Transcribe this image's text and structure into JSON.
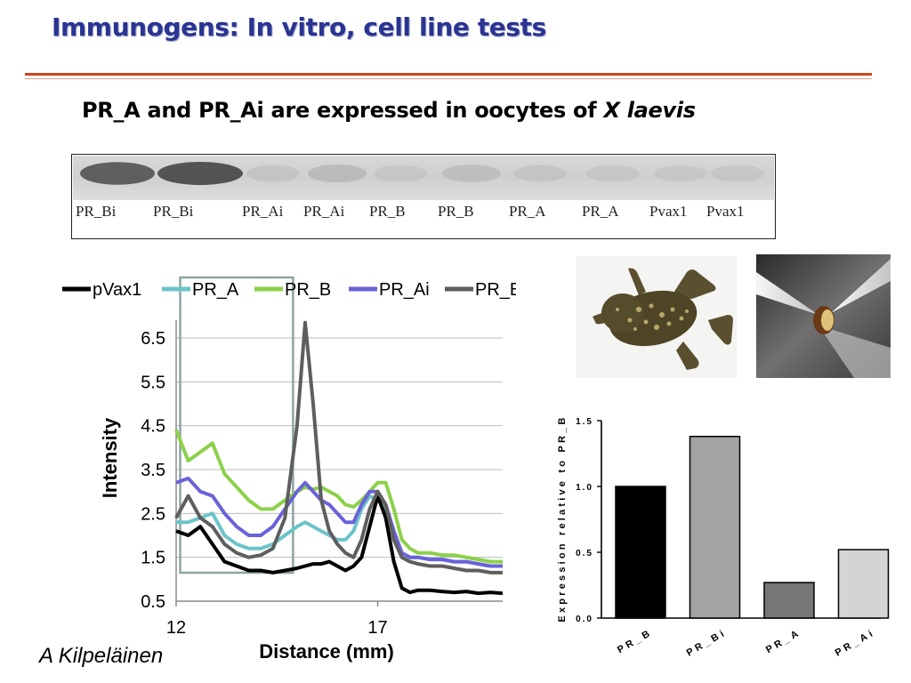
{
  "slide": {
    "title": "Immunogens: In vitro, cell line tests",
    "subtitle_main": "PR_A and PR_Ai are expressed in oocytes of ",
    "subtitle_italic": "X laevis",
    "author": "A Kilpeläinen"
  },
  "gel": {
    "lanes": [
      "PR_Bi",
      "PR_Bi",
      "PR_Ai",
      "PR_Ai",
      "PR_B",
      "PR_B",
      "PR_A",
      "PR_A",
      "Pvax1",
      "Pvax1"
    ],
    "band_intensity": [
      0.75,
      0.8,
      0.12,
      0.22,
      0.1,
      0.18,
      0.12,
      0.1,
      0.08,
      0.1
    ]
  },
  "photos": {
    "frog_icon": "frog-photo",
    "oocyte_icon": "oocyte-photo"
  },
  "colors": {
    "title": "#2a3491",
    "rule": "#c9471d",
    "pVax1": "#000000",
    "PR_A": "#6cc4c9",
    "PR_B": "#8cd14a",
    "PR_Ai": "#6a62d8",
    "PR_Bi": "#5e5e5e"
  },
  "chart_data": [
    {
      "type": "line",
      "title": "",
      "xlabel": "Distance (mm)",
      "ylabel": "Intensity",
      "xlim": [
        12,
        20.1
      ],
      "ylim": [
        0.5,
        6.5
      ],
      "xticks": [
        "12",
        "17"
      ],
      "yticks": [
        "0.5",
        "1.5",
        "2.5",
        "3.5",
        "4.5",
        "5.5",
        "6.5"
      ],
      "grid": true,
      "legend_position": "top",
      "highlight_region": [
        12.1,
        14.9
      ],
      "x": [
        12.0,
        12.3,
        12.6,
        12.9,
        13.2,
        13.5,
        13.8,
        14.1,
        14.4,
        14.7,
        15.0,
        15.2,
        15.4,
        15.6,
        15.8,
        16.0,
        16.2,
        16.4,
        16.6,
        16.8,
        17.0,
        17.2,
        17.4,
        17.6,
        17.8,
        18.0,
        18.3,
        18.6,
        18.9,
        19.2,
        19.5,
        19.8,
        20.1
      ],
      "series": [
        {
          "name": "pVax1",
          "values": [
            2.1,
            2.0,
            2.2,
            1.8,
            1.4,
            1.3,
            1.2,
            1.2,
            1.15,
            1.2,
            1.25,
            1.3,
            1.35,
            1.35,
            1.4,
            1.3,
            1.2,
            1.3,
            1.5,
            2.2,
            2.9,
            2.4,
            1.4,
            0.8,
            0.7,
            0.75,
            0.75,
            0.72,
            0.7,
            0.72,
            0.68,
            0.7,
            0.68
          ]
        },
        {
          "name": "PR_A",
          "values": [
            2.3,
            2.3,
            2.4,
            2.5,
            2.0,
            1.8,
            1.7,
            1.7,
            1.8,
            2.0,
            2.2,
            2.3,
            2.2,
            2.1,
            2.0,
            1.9,
            1.9,
            2.1,
            2.6,
            2.9,
            2.8,
            2.6,
            2.0,
            1.6,
            1.5,
            1.5,
            1.45,
            1.45,
            1.4,
            1.4,
            1.35,
            1.3,
            1.3
          ]
        },
        {
          "name": "PR_B",
          "values": [
            4.4,
            3.7,
            3.9,
            4.1,
            3.4,
            3.1,
            2.8,
            2.6,
            2.6,
            2.8,
            3.0,
            3.1,
            3.05,
            3.1,
            3.0,
            2.9,
            2.7,
            2.65,
            2.8,
            3.0,
            3.2,
            3.2,
            2.6,
            1.9,
            1.7,
            1.6,
            1.6,
            1.55,
            1.55,
            1.5,
            1.45,
            1.4,
            1.4
          ]
        },
        {
          "name": "PR_Ai",
          "values": [
            3.2,
            3.3,
            3.0,
            2.9,
            2.5,
            2.2,
            2.0,
            2.0,
            2.2,
            2.6,
            3.0,
            3.2,
            3.0,
            2.8,
            2.7,
            2.5,
            2.3,
            2.3,
            2.7,
            3.0,
            3.0,
            2.7,
            2.1,
            1.6,
            1.5,
            1.5,
            1.45,
            1.45,
            1.4,
            1.4,
            1.35,
            1.3,
            1.3
          ]
        },
        {
          "name": "PR_Bi",
          "values": [
            2.4,
            2.9,
            2.4,
            2.2,
            1.8,
            1.6,
            1.5,
            1.55,
            1.7,
            2.4,
            4.5,
            6.85,
            5.0,
            2.8,
            2.1,
            1.8,
            1.6,
            1.5,
            1.9,
            2.6,
            3.0,
            2.7,
            1.9,
            1.5,
            1.4,
            1.35,
            1.3,
            1.3,
            1.25,
            1.2,
            1.2,
            1.15,
            1.15
          ]
        }
      ]
    },
    {
      "type": "bar",
      "title": "",
      "xlabel": "",
      "ylabel": "Expression relative to PR_B",
      "ylim": [
        0,
        1.5
      ],
      "yticks": [
        "0.0",
        "0.5",
        "1.0",
        "1.5"
      ],
      "categories": [
        "PR_B",
        "PR_Bi",
        "PR_A",
        "PR_Ai"
      ],
      "values": [
        1.0,
        1.38,
        0.27,
        0.52
      ],
      "bar_colors": [
        "#000000",
        "#a3a3a3",
        "#767676",
        "#d4d4d4"
      ]
    }
  ]
}
